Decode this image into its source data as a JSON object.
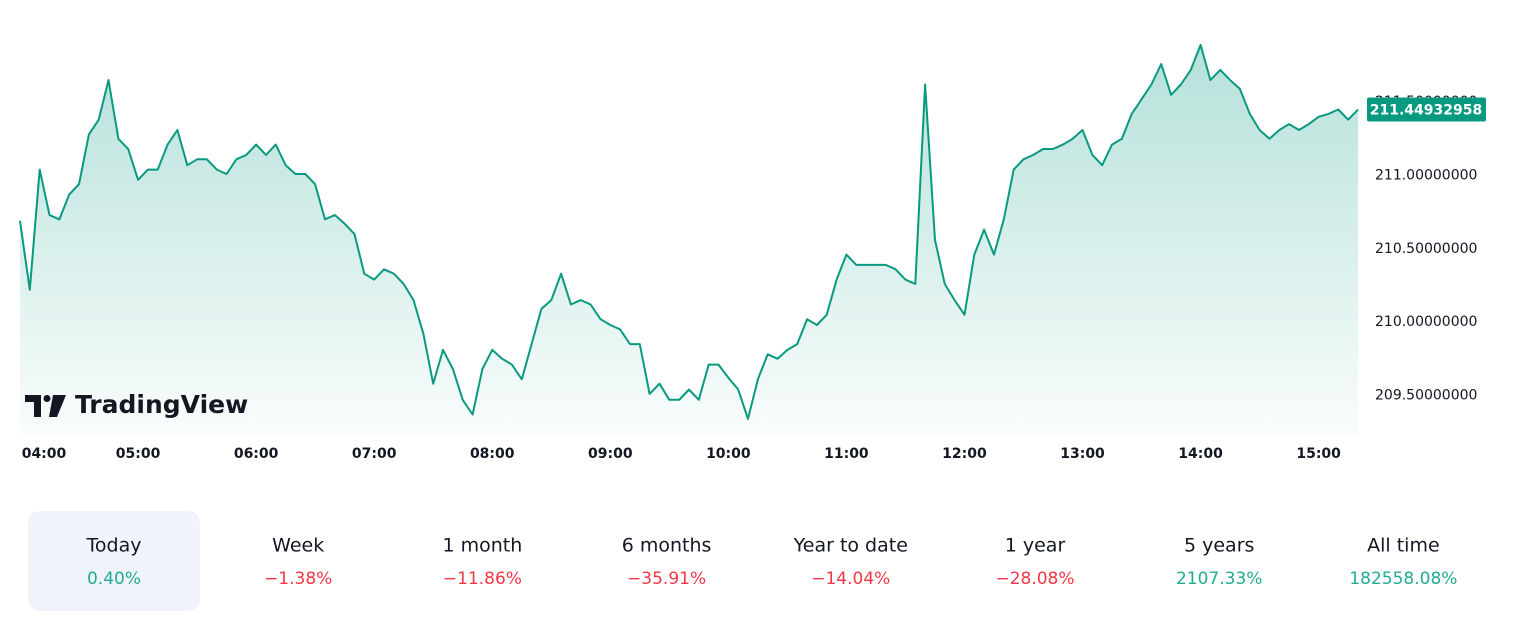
{
  "chart_data": {
    "type": "area",
    "logo_text": "TradingView",
    "color": "#089981",
    "x": [
      "04:00",
      "04:05",
      "04:10",
      "04:15",
      "04:20",
      "04:25",
      "04:30",
      "04:35",
      "04:40",
      "04:45",
      "04:50",
      "04:55",
      "05:00",
      "05:05",
      "05:10",
      "05:15",
      "05:20",
      "05:25",
      "05:30",
      "05:35",
      "05:40",
      "05:45",
      "05:50",
      "05:55",
      "06:00",
      "06:05",
      "06:10",
      "06:15",
      "06:20",
      "06:25",
      "06:30",
      "06:35",
      "06:40",
      "06:45",
      "06:50",
      "06:55",
      "07:00",
      "07:05",
      "07:10",
      "07:15",
      "07:20",
      "07:25",
      "07:30",
      "07:35",
      "07:40",
      "07:45",
      "07:50",
      "07:55",
      "08:00",
      "08:05",
      "08:10",
      "08:15",
      "08:20",
      "08:25",
      "08:30",
      "08:35",
      "08:40",
      "08:45",
      "08:50",
      "08:55",
      "09:00",
      "09:05",
      "09:10",
      "09:15",
      "09:20",
      "09:25",
      "09:30",
      "09:35",
      "09:40",
      "09:45",
      "09:50",
      "09:55",
      "10:00",
      "10:05",
      "10:10",
      "10:15",
      "10:20",
      "10:25",
      "10:30",
      "10:35",
      "10:40",
      "10:45",
      "10:50",
      "10:55",
      "11:00",
      "11:05",
      "11:10",
      "11:15",
      "11:20",
      "11:25",
      "11:30",
      "11:35",
      "11:40",
      "11:45",
      "11:50",
      "11:55",
      "12:00",
      "12:05",
      "12:10",
      "12:15",
      "12:20",
      "12:25",
      "12:30",
      "12:35",
      "12:40",
      "12:45",
      "12:50",
      "12:55",
      "13:00",
      "13:05",
      "13:10",
      "13:15",
      "13:20",
      "13:25",
      "13:30",
      "13:35",
      "13:40",
      "13:45",
      "13:50",
      "13:55",
      "14:00",
      "14:05",
      "14:10",
      "14:15",
      "14:20",
      "14:25",
      "14:30",
      "14:35",
      "14:40",
      "14:45",
      "14:50",
      "14:55",
      "15:00",
      "15:05",
      "15:10",
      "15:15",
      "15:20"
    ],
    "values": [
      210.69,
      210.22,
      211.04,
      210.73,
      210.7,
      210.87,
      210.94,
      211.28,
      211.38,
      211.65,
      211.25,
      211.18,
      210.97,
      211.04,
      211.04,
      211.21,
      211.31,
      211.07,
      211.11,
      211.11,
      211.04,
      211.01,
      211.11,
      211.14,
      211.21,
      211.14,
      211.21,
      211.07,
      211.01,
      211.01,
      210.94,
      210.7,
      210.73,
      210.67,
      210.6,
      210.33,
      210.29,
      210.36,
      210.33,
      210.26,
      210.15,
      209.92,
      209.58,
      209.81,
      209.68,
      209.47,
      209.37,
      209.68,
      209.81,
      209.75,
      209.71,
      209.61,
      209.85,
      210.09,
      210.15,
      210.33,
      210.12,
      210.15,
      210.12,
      210.02,
      209.98,
      209.95,
      209.85,
      209.85,
      209.51,
      209.58,
      209.47,
      209.47,
      209.54,
      209.47,
      209.71,
      209.71,
      209.62,
      209.54,
      209.34,
      209.61,
      209.78,
      209.75,
      209.81,
      209.85,
      210.02,
      209.98,
      210.05,
      210.29,
      210.46,
      210.39,
      210.39,
      210.39,
      210.39,
      210.36,
      210.29,
      210.26,
      211.62,
      210.56,
      210.26,
      210.15,
      210.05,
      210.46,
      210.63,
      210.46,
      210.7,
      211.04,
      211.11,
      211.14,
      211.18,
      211.18,
      211.21,
      211.25,
      211.31,
      211.14,
      211.07,
      211.21,
      211.25,
      211.42,
      211.52,
      211.62,
      211.76,
      211.55,
      211.62,
      211.72,
      211.89,
      211.65,
      211.72,
      211.65,
      211.59,
      211.42,
      211.31,
      211.25,
      211.31,
      211.35,
      211.31,
      211.35,
      211.4,
      211.42,
      211.45,
      211.38,
      211.44932958
    ],
    "xlim": [
      "04:00",
      "15:20"
    ],
    "xticks": [
      "04:00",
      "05:00",
      "06:00",
      "07:00",
      "08:00",
      "09:00",
      "10:00",
      "11:00",
      "12:00",
      "13:00",
      "14:00",
      "15:00"
    ],
    "ylim": [
      209.23,
      212.06
    ],
    "yticks": [
      {
        "value": 209.5,
        "label": "209.50000000"
      },
      {
        "value": 210,
        "label": "210.00000000"
      },
      {
        "value": 210.5,
        "label": "210.50000000"
      },
      {
        "value": 211,
        "label": "211.00000000"
      },
      {
        "value": 211.5,
        "label": "211.50000000"
      }
    ]
  },
  "periods": [
    {
      "name": "Today",
      "value": 0.4,
      "label": "0.40%"
    },
    {
      "name": "Week",
      "value": -1.38,
      "label": "−1.38%"
    },
    {
      "name": "1 month",
      "value": -11.86,
      "label": "−11.86%"
    },
    {
      "name": "6 months",
      "value": -35.91,
      "label": "−35.91%"
    },
    {
      "name": "Year to date",
      "value": -14.04,
      "label": "−14.04%"
    },
    {
      "name": "1 year",
      "value": -28.08,
      "label": "−28.08%"
    },
    {
      "name": "5 years",
      "value": 2107.33,
      "label": "2107.33%"
    },
    {
      "name": "All time",
      "value": 182558.08,
      "label": "182558.08%"
    }
  ],
  "positive_color": "#22ab94",
  "negative_color": "#f23645"
}
